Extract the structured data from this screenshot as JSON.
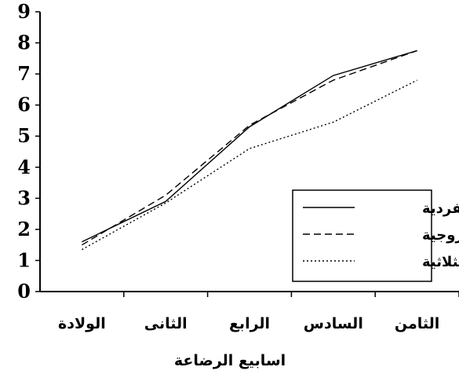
{
  "chart_data": {
    "type": "line",
    "categories": [
      "الولادة",
      "الثانى",
      "الرابع",
      "السادس",
      "الثامن"
    ],
    "series": [
      {
        "name": "الفردية",
        "values": [
          1.6,
          2.9,
          5.3,
          6.95,
          7.75
        ],
        "dash": "solid",
        "color": "#000000"
      },
      {
        "name": "الزوجية",
        "values": [
          1.5,
          3.1,
          5.35,
          6.8,
          7.75
        ],
        "dash": "dashed",
        "color": "#000000"
      },
      {
        "name": "الثلاثية",
        "values": [
          1.35,
          2.85,
          4.6,
          5.45,
          6.8
        ],
        "dash": "dotted",
        "color": "#000000"
      }
    ],
    "xlabel": "اسابيع الرضاعة",
    "ylabel": "",
    "ylim": [
      0,
      9
    ],
    "yticks": [
      "0",
      "1",
      "2",
      "3",
      "4",
      "5",
      "6",
      "7",
      "8",
      "9"
    ],
    "grid": false,
    "legend_position": "bottom-right"
  }
}
